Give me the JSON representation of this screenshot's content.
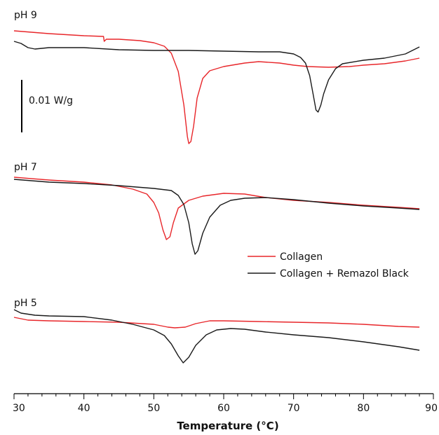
{
  "chart_data": {
    "type": "line",
    "xlabel_prefix": "Temperature (",
    "xlabel_unit": "°C",
    "xlabel_suffix": ")",
    "xlim": [
      30,
      90
    ],
    "x_major_ticks": [
      30,
      40,
      50,
      60,
      70,
      80,
      90
    ],
    "scale_bar_label": "0.01 W/g",
    "legend": {
      "placement": "center-right",
      "entries": [
        {
          "label": "Collagen",
          "color": "#e8262a"
        },
        {
          "label": "Collagen + Remazol Black",
          "color": "#1a1a1a"
        }
      ]
    },
    "panels": [
      {
        "label": "pH 9",
        "series": [
          {
            "name": "Collagen",
            "color": "#e8262a",
            "points": [
              [
                30,
                44
              ],
              [
                35,
                48
              ],
              [
                40,
                51
              ],
              [
                42.8,
                52
              ],
              [
                42.9,
                59
              ],
              [
                43.2,
                56
              ],
              [
                45,
                56
              ],
              [
                48,
                58
              ],
              [
                50,
                61
              ],
              [
                51.5,
                66
              ],
              [
                52.5,
                76
              ],
              [
                53.5,
                102
              ],
              [
                54.3,
                150
              ],
              [
                54.8,
                195
              ],
              [
                55,
                205
              ],
              [
                55.3,
                202
              ],
              [
                55.7,
                180
              ],
              [
                56.2,
                140
              ],
              [
                57,
                112
              ],
              [
                58,
                101
              ],
              [
                60,
                95
              ],
              [
                63,
                90
              ],
              [
                65,
                88
              ],
              [
                68,
                90
              ],
              [
                70,
                93
              ],
              [
                72,
                95
              ],
              [
                75,
                96
              ],
              [
                78,
                95
              ],
              [
                80,
                93
              ],
              [
                83,
                91
              ],
              [
                86,
                87
              ],
              [
                88,
                83
              ]
            ]
          },
          {
            "name": "Collagen + Remazol Black",
            "color": "#1a1a1a",
            "points": [
              [
                30,
                59
              ],
              [
                31,
                62
              ],
              [
                32,
                68
              ],
              [
                33,
                70
              ],
              [
                35,
                68
              ],
              [
                40,
                68
              ],
              [
                45,
                71
              ],
              [
                50,
                72
              ],
              [
                55,
                72
              ],
              [
                60,
                73
              ],
              [
                65,
                74
              ],
              [
                68,
                74
              ],
              [
                70,
                77
              ],
              [
                71,
                82
              ],
              [
                71.7,
                90
              ],
              [
                72.3,
                108
              ],
              [
                72.8,
                135
              ],
              [
                73.2,
                157
              ],
              [
                73.5,
                160
              ],
              [
                73.9,
                150
              ],
              [
                74.3,
                134
              ],
              [
                75,
                114
              ],
              [
                76,
                98
              ],
              [
                77,
                91
              ],
              [
                80,
                86
              ],
              [
                83,
                83
              ],
              [
                86,
                77
              ],
              [
                88,
                67
              ]
            ]
          }
        ]
      },
      {
        "label": "pH 7",
        "series": [
          {
            "name": "Collagen",
            "color": "#e8262a",
            "points": [
              [
                30,
                253
              ],
              [
                35,
                257
              ],
              [
                40,
                260
              ],
              [
                44,
                264
              ],
              [
                47,
                270
              ],
              [
                49,
                277
              ],
              [
                50,
                289
              ],
              [
                50.7,
                304
              ],
              [
                51.3,
                328
              ],
              [
                51.8,
                342
              ],
              [
                52.3,
                338
              ],
              [
                52.8,
                318
              ],
              [
                53.5,
                297
              ],
              [
                55,
                286
              ],
              [
                57,
                280
              ],
              [
                60,
                276
              ],
              [
                63,
                277
              ],
              [
                66,
                282
              ],
              [
                70,
                286
              ],
              [
                75,
                289
              ],
              [
                80,
                293
              ],
              [
                85,
                296
              ],
              [
                88,
                298
              ]
            ]
          },
          {
            "name": "Collagen + Remazol Black",
            "color": "#1a1a1a",
            "points": [
              [
                30,
                256
              ],
              [
                35,
                260
              ],
              [
                40,
                262
              ],
              [
                45,
                265
              ],
              [
                50,
                269
              ],
              [
                52.5,
                272
              ],
              [
                53.5,
                279
              ],
              [
                54.3,
                292
              ],
              [
                55,
                318
              ],
              [
                55.5,
                348
              ],
              [
                55.9,
                363
              ],
              [
                56.3,
                358
              ],
              [
                57,
                333
              ],
              [
                58,
                310
              ],
              [
                59.5,
                293
              ],
              [
                61,
                286
              ],
              [
                63,
                283
              ],
              [
                66,
                282
              ],
              [
                70,
                285
              ],
              [
                75,
                290
              ],
              [
                80,
                294
              ],
              [
                85,
                297
              ],
              [
                88,
                299
              ]
            ]
          }
        ]
      },
      {
        "label": "pH 5",
        "series": [
          {
            "name": "Collagen",
            "color": "#e8262a",
            "points": [
              [
                30,
                453
              ],
              [
                32,
                457
              ],
              [
                35,
                458
              ],
              [
                40,
                459
              ],
              [
                45,
                460
              ],
              [
                50,
                463
              ],
              [
                52,
                467
              ],
              [
                53,
                468
              ],
              [
                54.5,
                467
              ],
              [
                56,
                462
              ],
              [
                58,
                458
              ],
              [
                60,
                458
              ],
              [
                65,
                459
              ],
              [
                70,
                460
              ],
              [
                75,
                461
              ],
              [
                80,
                463
              ],
              [
                85,
                466
              ],
              [
                88,
                467
              ]
            ]
          },
          {
            "name": "Collagen + Remazol Black",
            "color": "#1a1a1a",
            "points": [
              [
                30,
                442
              ],
              [
                31,
                447
              ],
              [
                33,
                450
              ],
              [
                35,
                451
              ],
              [
                40,
                452
              ],
              [
                44,
                457
              ],
              [
                47,
                463
              ],
              [
                50,
                471
              ],
              [
                51.5,
                479
              ],
              [
                52.5,
                491
              ],
              [
                53.5,
                508
              ],
              [
                54.2,
                518
              ],
              [
                55,
                510
              ],
              [
                56,
                493
              ],
              [
                57.5,
                478
              ],
              [
                59,
                471
              ],
              [
                61,
                469
              ],
              [
                63,
                470
              ],
              [
                66,
                474
              ],
              [
                70,
                478
              ],
              [
                75,
                482
              ],
              [
                80,
                488
              ],
              [
                85,
                495
              ],
              [
                88,
                500
              ]
            ]
          }
        ]
      }
    ]
  }
}
